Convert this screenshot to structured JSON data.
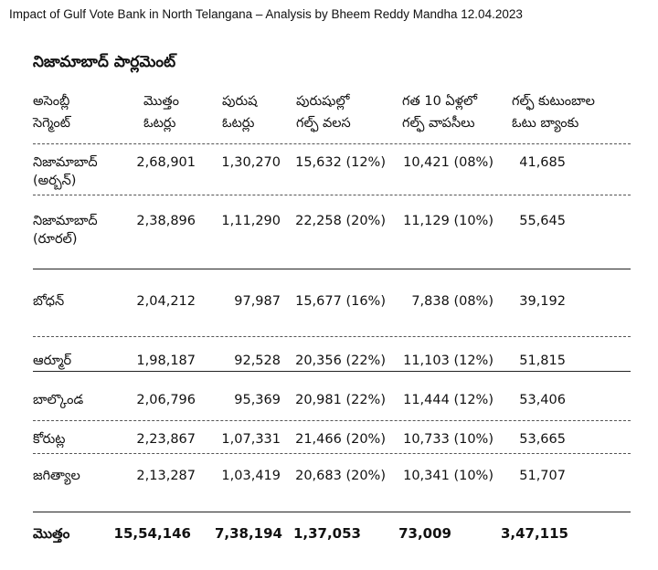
{
  "page": {
    "heading": "Impact of Gulf Vote Bank in North Telangana – Analysis by Bheem Reddy Mandha 12.04.2023",
    "title": "నిజామాబాద్ పార్లమెంట్"
  },
  "table": {
    "headers": [
      "అసెంబ్లీ\nసెగ్మెంట్",
      "మొత్తం\nఓటర్లు",
      "పురుష\nఓటర్లు",
      "పురుషుల్లో\nగల్ఫ్ వలస",
      "గత 10 ఏళ్లలో\nగల్ఫ్ వాపసీలు",
      "గల్ఫ్ కుటుంబాల\nఓటు బ్యాంకు"
    ],
    "rows": [
      {
        "segment": "నిజామాబాద్\n(అర్బన్)",
        "total": "2,68,901",
        "male": "1,30,270",
        "gulf": "15,632 (12%)",
        "returnees": "10,421 (08%)",
        "vote_bank": "41,685"
      },
      {
        "segment": "నిజామాబాద్\n(రూరల్)",
        "total": "2,38,896",
        "male": "1,11,290",
        "gulf": "22,258 (20%)",
        "returnees": "11,129 (10%)",
        "vote_bank": "55,645"
      },
      {
        "segment": "బోధన్",
        "total": "2,04,212",
        "male": "97,987",
        "gulf": "15,677 (16%)",
        "returnees": "7,838 (08%)",
        "vote_bank": "39,192"
      },
      {
        "segment": "ఆర్మూర్",
        "total": "1,98,187",
        "male": "92,528",
        "gulf": "20,356 (22%)",
        "returnees": "11,103 (12%)",
        "vote_bank": "51,815"
      },
      {
        "segment": "బాల్కొండ",
        "total": "2,06,796",
        "male": "95,369",
        "gulf": "20,981 (22%)",
        "returnees": "11,444 (12%)",
        "vote_bank": "53,406"
      },
      {
        "segment": "కోరుట్ల",
        "total": "2,23,867",
        "male": "1,07,331",
        "gulf": "21,466 (20%)",
        "returnees": "10,733 (10%)",
        "vote_bank": "53,665"
      },
      {
        "segment": "జగిత్యాల",
        "total": "2,13,287",
        "male": "1,03,419",
        "gulf": "20,683 (20%)",
        "returnees": "10,341 (10%)",
        "vote_bank": "51,707"
      }
    ],
    "total": {
      "label": "మొత్తం",
      "total": "15,54,146",
      "male": "7,38,194",
      "gulf": "1,37,053",
      "returnees": "73,009",
      "vote_bank": "3,47,115"
    }
  }
}
